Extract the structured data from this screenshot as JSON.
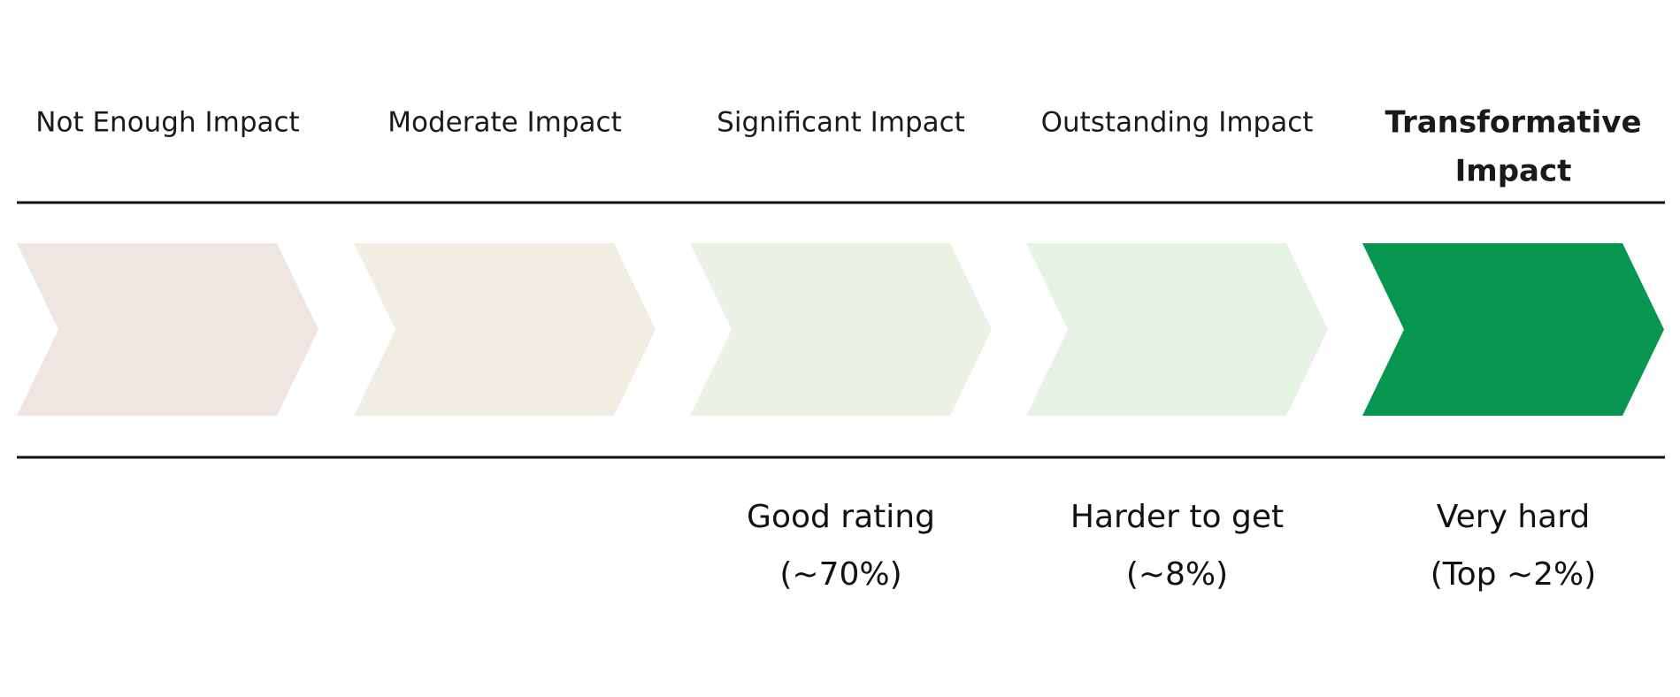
{
  "stages": [
    {
      "label": [
        "Not Enough Impact"
      ],
      "color": "#f0e6e1",
      "note": []
    },
    {
      "label": [
        "Moderate Impact"
      ],
      "color": "#f0eee3",
      "note": []
    },
    {
      "label": [
        "Significant Impact"
      ],
      "color": "#ebf1e5",
      "note": [
        "Good rating",
        "(~70%)"
      ]
    },
    {
      "label": [
        "Outstanding Impact"
      ],
      "color": "#e6f2e4",
      "note": [
        "Harder to get",
        "(~8%)"
      ]
    },
    {
      "label": [
        "Transformative",
        "Impact"
      ],
      "color": "#06964f",
      "note": [
        "Very hard",
        "(Top ~2%)"
      ],
      "emphasis": true
    }
  ]
}
